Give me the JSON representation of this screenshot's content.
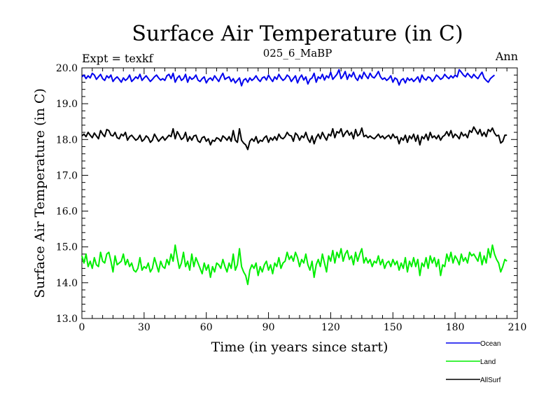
{
  "chart_data": {
    "type": "line",
    "title": "Surface Air Temperature (in C)",
    "subtitle": "025_6_MaBP",
    "left_label": "Expt = texkf",
    "right_label": "Ann",
    "xlabel": "Time (in years since start)",
    "ylabel": "Surface Air Temperature (in C)",
    "xlim": [
      0,
      210
    ],
    "ylim": [
      13.0,
      20.0
    ],
    "x_ticks": [
      0,
      30,
      60,
      90,
      120,
      150,
      180,
      210
    ],
    "y_ticks": [
      "13.0",
      "14.0",
      "15.0",
      "16.0",
      "17.0",
      "18.0",
      "19.0",
      "20.0"
    ],
    "legend_position": "bottom-right",
    "series": [
      {
        "name": "Ocean",
        "color": "#0000ee",
        "values": [
          19.75,
          19.8,
          19.7,
          19.78,
          19.72,
          19.85,
          19.8,
          19.68,
          19.75,
          19.82,
          19.7,
          19.65,
          19.78,
          19.72,
          19.8,
          19.62,
          19.7,
          19.75,
          19.68,
          19.6,
          19.72,
          19.65,
          19.7,
          19.8,
          19.62,
          19.68,
          19.75,
          19.7,
          19.82,
          19.65,
          19.72,
          19.78,
          19.7,
          19.62,
          19.68,
          19.75,
          19.8,
          19.72,
          19.66,
          19.7,
          19.65,
          19.78,
          19.82,
          19.7,
          19.85,
          19.6,
          19.72,
          19.78,
          19.65,
          19.7,
          19.82,
          19.6,
          19.75,
          19.68,
          19.72,
          19.8,
          19.66,
          19.62,
          19.7,
          19.75,
          19.58,
          19.68,
          19.72,
          19.65,
          19.78,
          19.7,
          19.62,
          19.75,
          19.85,
          19.68,
          19.72,
          19.75,
          19.62,
          19.7,
          19.58,
          19.65,
          19.72,
          19.5,
          19.66,
          19.7,
          19.6,
          19.72,
          19.65,
          19.7,
          19.78,
          19.68,
          19.62,
          19.72,
          19.75,
          19.66,
          19.8,
          19.7,
          19.62,
          19.75,
          19.68,
          19.82,
          19.72,
          19.65,
          19.7,
          19.8,
          19.75,
          19.62,
          19.7,
          19.78,
          19.58,
          19.72,
          19.8,
          19.66,
          19.75,
          19.55,
          19.68,
          19.72,
          19.85,
          19.6,
          19.75,
          19.7,
          19.82,
          19.66,
          19.78,
          19.72,
          19.88,
          19.68,
          19.75,
          19.82,
          19.95,
          19.7,
          19.78,
          19.9,
          19.68,
          19.82,
          19.75,
          19.88,
          19.72,
          19.65,
          19.8,
          19.7,
          19.88,
          19.78,
          19.7,
          19.85,
          19.75,
          19.72,
          19.8,
          19.9,
          19.75,
          19.68,
          19.72,
          19.65,
          19.7,
          19.78,
          19.6,
          19.72,
          19.68,
          19.52,
          19.66,
          19.7,
          19.58,
          19.72,
          19.65,
          19.7,
          19.62,
          19.68,
          19.75,
          19.6,
          19.8,
          19.7,
          19.66,
          19.75,
          19.72,
          19.62,
          19.7,
          19.8,
          19.75,
          19.68,
          19.72,
          19.82,
          19.75,
          19.7,
          19.78,
          19.72,
          19.8,
          19.75,
          19.95,
          19.88,
          19.8,
          19.75,
          19.85,
          19.78,
          19.72,
          19.82,
          19.75,
          19.7,
          19.8,
          19.88,
          19.72,
          19.65,
          19.6,
          19.7,
          19.75,
          19.8
        ]
      },
      {
        "name": "Land",
        "color": "#00ee00",
        "values": [
          14.75,
          14.55,
          14.8,
          14.45,
          14.6,
          14.4,
          14.7,
          14.5,
          14.45,
          14.85,
          14.6,
          14.55,
          14.8,
          14.85,
          14.6,
          14.3,
          14.75,
          14.5,
          14.55,
          14.6,
          14.8,
          14.5,
          14.65,
          14.45,
          14.55,
          14.35,
          14.3,
          14.4,
          14.7,
          14.35,
          14.45,
          14.4,
          14.55,
          14.3,
          14.4,
          14.7,
          14.5,
          14.3,
          14.6,
          14.45,
          14.4,
          14.65,
          14.5,
          14.8,
          14.6,
          15.05,
          14.7,
          14.4,
          14.55,
          14.85,
          14.45,
          14.6,
          14.35,
          14.8,
          14.45,
          14.7,
          14.55,
          14.4,
          14.25,
          14.55,
          14.35,
          14.5,
          14.15,
          14.45,
          14.3,
          14.55,
          14.5,
          14.4,
          14.65,
          14.45,
          14.3,
          14.55,
          14.4,
          14.8,
          14.35,
          14.5,
          14.95,
          14.45,
          14.3,
          14.2,
          13.95,
          14.35,
          14.5,
          14.4,
          14.55,
          14.2,
          14.45,
          14.3,
          14.5,
          14.6,
          14.35,
          14.5,
          14.25,
          14.55,
          14.45,
          14.7,
          14.4,
          14.55,
          14.6,
          14.85,
          14.65,
          14.75,
          14.6,
          14.85,
          14.7,
          14.45,
          14.65,
          14.55,
          14.8,
          14.5,
          14.35,
          14.6,
          14.15,
          14.5,
          14.65,
          14.45,
          14.8,
          14.55,
          14.3,
          14.75,
          14.6,
          14.9,
          14.55,
          14.85,
          14.7,
          14.95,
          14.6,
          14.8,
          14.9,
          14.65,
          14.75,
          14.5,
          14.85,
          14.6,
          14.8,
          14.95,
          14.55,
          14.7,
          14.55,
          14.65,
          14.45,
          14.6,
          14.55,
          14.75,
          14.5,
          14.65,
          14.4,
          14.55,
          14.6,
          14.45,
          14.65,
          14.5,
          14.6,
          14.35,
          14.55,
          14.4,
          14.7,
          14.3,
          14.6,
          14.45,
          14.7,
          14.45,
          14.65,
          14.2,
          14.55,
          14.45,
          14.7,
          14.4,
          14.75,
          14.55,
          14.7,
          14.45,
          14.65,
          14.2,
          14.5,
          14.45,
          14.8,
          14.6,
          14.85,
          14.55,
          14.75,
          14.65,
          14.5,
          14.8,
          14.6,
          14.7,
          14.55,
          14.85,
          14.75,
          14.8,
          14.7,
          14.6,
          14.85,
          14.5,
          14.75,
          14.55,
          14.95,
          14.7,
          15.05,
          14.8,
          14.65,
          14.55,
          14.3,
          14.45,
          14.65,
          14.6
        ]
      },
      {
        "name": "AllSurf",
        "color": "#000000",
        "values": [
          18.1,
          18.15,
          18.08,
          18.2,
          18.12,
          18.05,
          18.18,
          18.1,
          18.02,
          18.25,
          18.15,
          18.08,
          18.28,
          18.25,
          18.12,
          18.1,
          18.2,
          18.05,
          18.02,
          18.15,
          18.1,
          18.2,
          17.98,
          18.08,
          18.12,
          18.05,
          17.98,
          18.02,
          18.12,
          17.95,
          18.0,
          18.1,
          18.05,
          17.92,
          17.98,
          18.15,
          18.05,
          17.95,
          18.02,
          18.08,
          17.98,
          18.05,
          18.12,
          18.08,
          18.3,
          18.02,
          18.22,
          18.12,
          18.0,
          18.05,
          18.2,
          17.95,
          18.08,
          17.98,
          18.1,
          18.12,
          17.96,
          17.92,
          18.05,
          18.08,
          17.95,
          18.02,
          17.85,
          17.98,
          17.95,
          18.05,
          18.02,
          17.95,
          18.1,
          18.05,
          17.98,
          18.08,
          17.95,
          18.25,
          17.98,
          17.92,
          18.3,
          17.98,
          17.9,
          17.85,
          17.72,
          17.95,
          18.02,
          17.95,
          18.08,
          17.9,
          17.98,
          17.95,
          18.05,
          18.1,
          17.92,
          18.05,
          17.98,
          18.08,
          17.98,
          18.15,
          18.05,
          18.02,
          18.08,
          18.2,
          18.12,
          18.1,
          17.95,
          18.18,
          18.12,
          17.98,
          18.1,
          18.05,
          18.2,
          18.02,
          17.92,
          18.1,
          17.88,
          18.05,
          18.15,
          18.02,
          18.2,
          18.08,
          17.98,
          18.15,
          18.1,
          18.3,
          18.05,
          18.22,
          18.18,
          18.3,
          18.08,
          18.18,
          18.25,
          18.12,
          18.2,
          18.02,
          18.28,
          18.1,
          18.15,
          18.32,
          18.08,
          18.12,
          18.05,
          18.1,
          18.05,
          18.02,
          18.08,
          18.15,
          18.05,
          18.1,
          18.02,
          18.08,
          18.12,
          18.02,
          18.15,
          18.05,
          18.08,
          17.88,
          18.05,
          17.98,
          18.12,
          17.92,
          18.1,
          18.02,
          18.15,
          17.95,
          18.12,
          17.85,
          18.08,
          18.02,
          18.15,
          17.98,
          18.2,
          18.05,
          18.1,
          18.02,
          18.12,
          17.98,
          18.08,
          18.12,
          18.22,
          18.1,
          18.25,
          18.05,
          18.15,
          18.1,
          18.02,
          18.2,
          18.1,
          18.15,
          18.05,
          18.25,
          18.2,
          18.35,
          18.25,
          18.15,
          18.28,
          18.1,
          18.2,
          18.08,
          18.28,
          18.22,
          18.32,
          18.18,
          18.1,
          18.12,
          17.9,
          17.95,
          18.12,
          18.12
        ]
      }
    ]
  }
}
